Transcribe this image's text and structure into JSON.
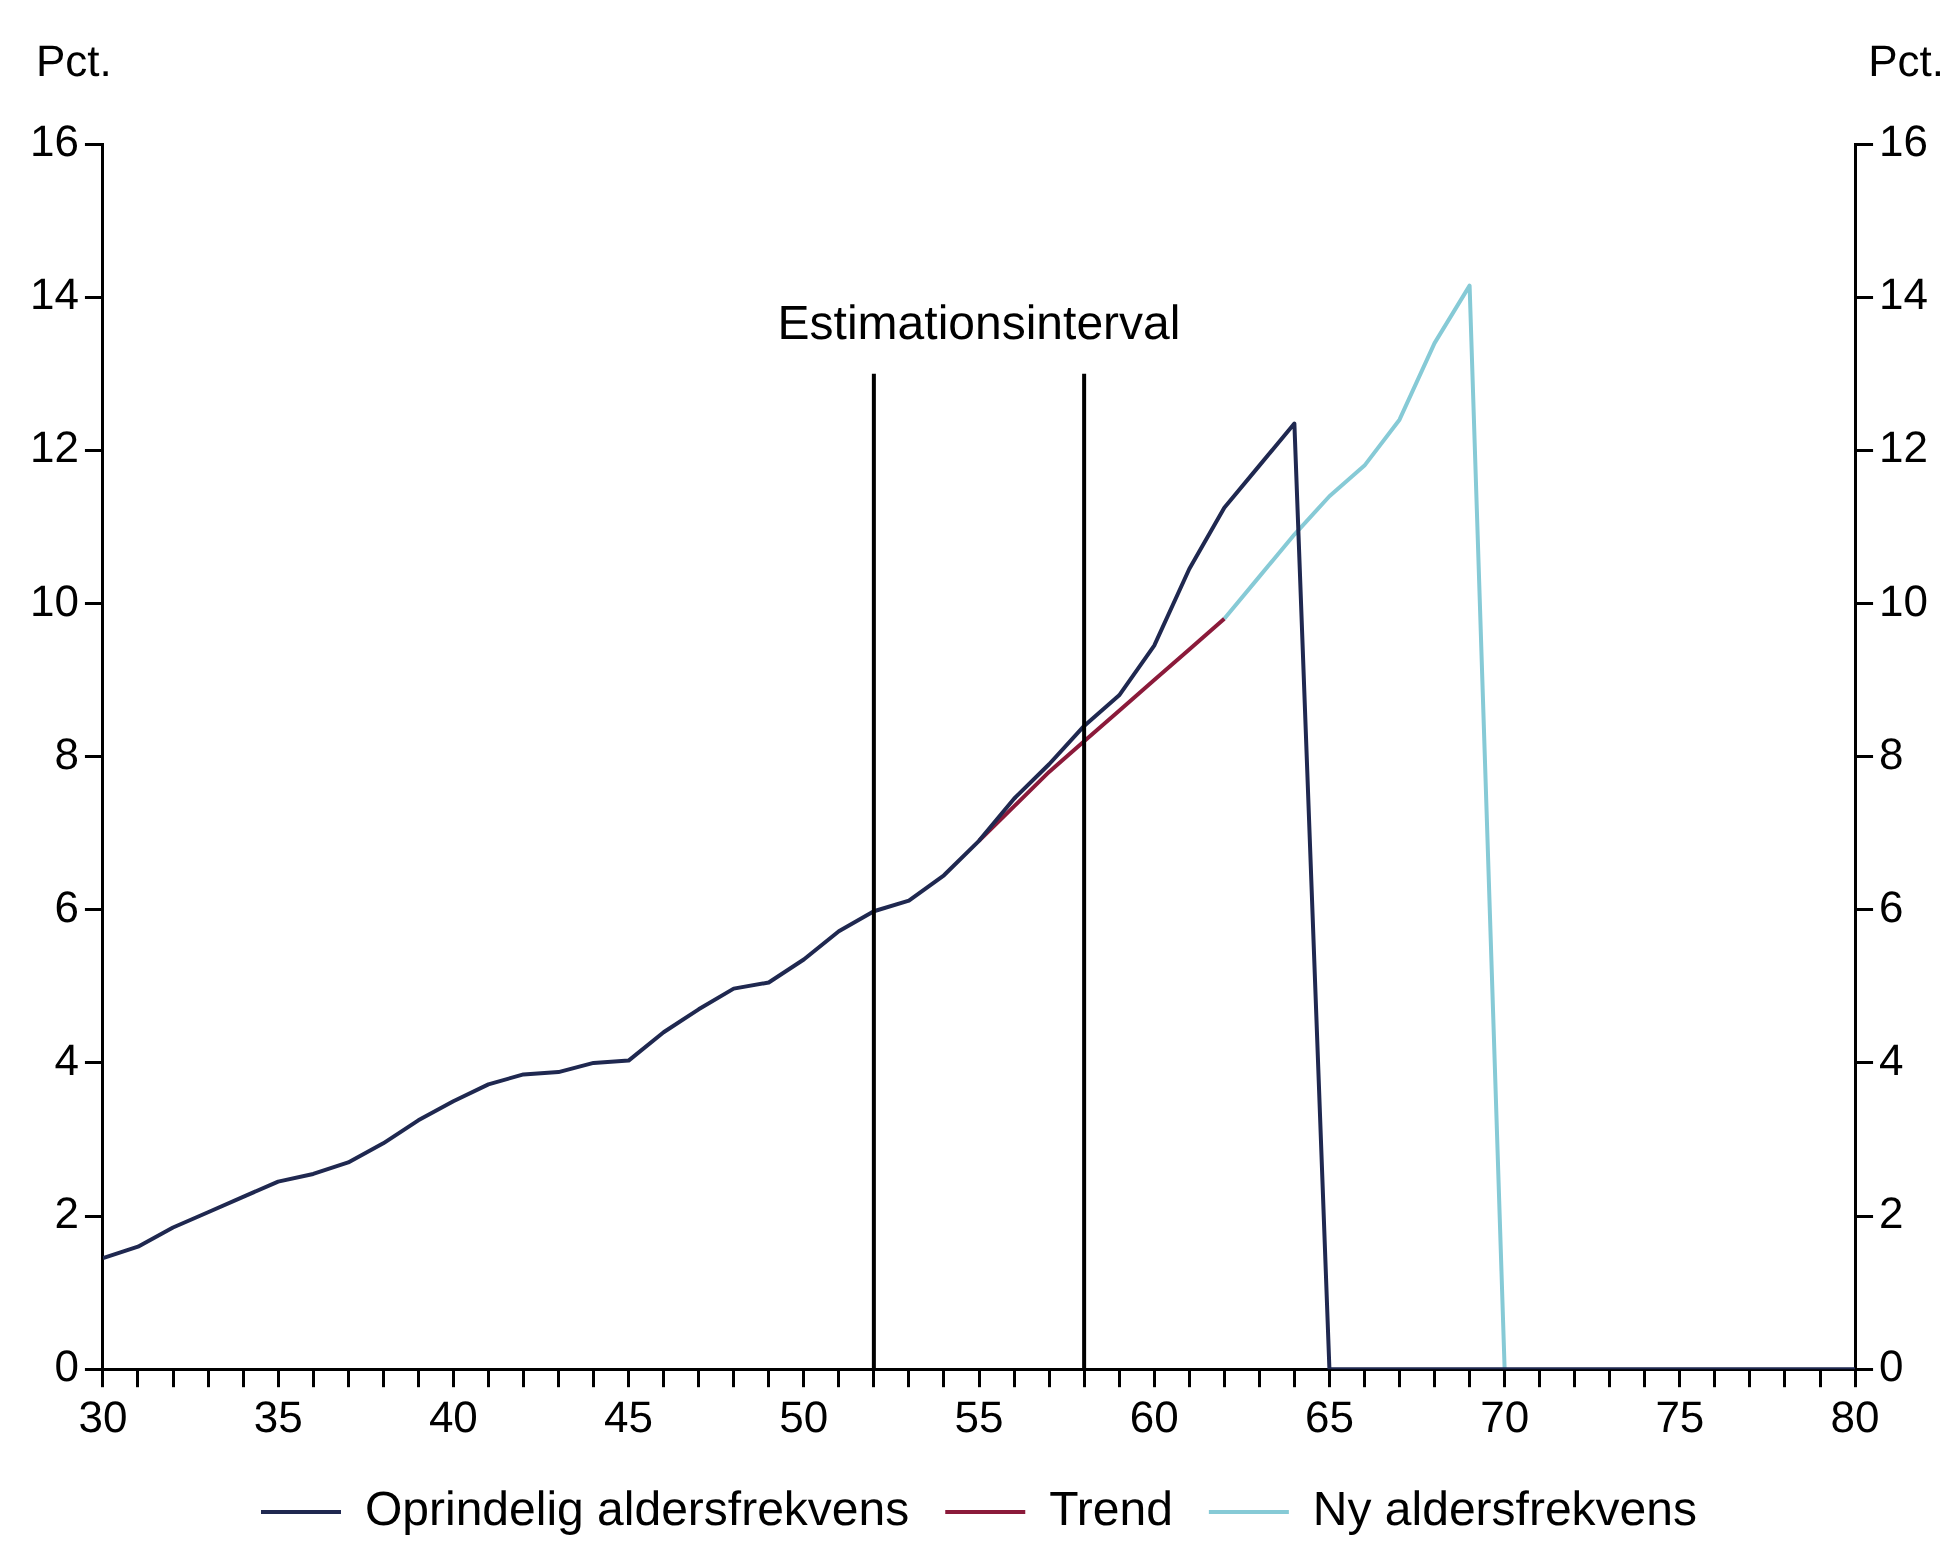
{
  "chart_data": {
    "type": "line",
    "ylabel": "Pct.",
    "y2label": "Pct.",
    "annotations": [
      "Estimationsinterval"
    ],
    "series": [
      {
        "name": "Oprindelig aldersfrekvens",
        "color": "#1f2850",
        "x": [
          30,
          31,
          32,
          33,
          34,
          35,
          36,
          37,
          38,
          39,
          40,
          41,
          42,
          43,
          44,
          45,
          46,
          47,
          48,
          49,
          50,
          51,
          52,
          53,
          54,
          55,
          56,
          57,
          58,
          59,
          60,
          61,
          62,
          63,
          64,
          65,
          66,
          67,
          68,
          69,
          70,
          71,
          72,
          73,
          74,
          75,
          76,
          77,
          78,
          79,
          80
        ],
        "values": [
          1.45,
          1.6,
          1.85,
          2.05,
          2.25,
          2.45,
          2.55,
          2.7,
          2.95,
          3.25,
          3.5,
          3.72,
          3.85,
          3.88,
          4.0,
          4.03,
          4.4,
          4.7,
          4.97,
          5.05,
          5.35,
          5.72,
          5.98,
          6.12,
          6.45,
          6.9,
          7.45,
          7.9,
          8.4,
          8.8,
          9.45,
          10.45,
          11.25,
          11.8,
          12.35,
          0,
          0,
          0,
          0,
          0,
          0,
          0,
          0,
          0,
          0,
          0,
          0,
          0,
          0,
          0,
          0
        ]
      },
      {
        "name": "Trend",
        "color": "#8b1a3a",
        "x": [
          55,
          56,
          57,
          58,
          59,
          60,
          61,
          62
        ],
        "values": [
          6.9,
          7.35,
          7.8,
          8.2,
          8.6,
          9.0,
          9.4,
          9.8
        ]
      },
      {
        "name": "Ny aldersfrekvens",
        "color": "#86cad6",
        "x": [
          62,
          63,
          64,
          65,
          66,
          67,
          68,
          69,
          70
        ],
        "values": [
          9.8,
          10.35,
          10.9,
          11.4,
          11.8,
          12.4,
          13.4,
          14.15,
          0
        ]
      }
    ],
    "ref_lines": [
      {
        "axis": "x",
        "value": 52,
        "color": "#000000"
      },
      {
        "axis": "x",
        "value": 58,
        "color": "#000000"
      }
    ],
    "xlim": [
      30,
      80
    ],
    "xticks": [
      30,
      {
        "value": 31,
        "label": null
      },
      {
        "value": 32,
        "label": null
      },
      {
        "value": 33,
        "label": null
      },
      {
        "value": 34,
        "label": null
      },
      35,
      {
        "value": 36,
        "label": null
      },
      {
        "value": 37,
        "label": null
      },
      {
        "value": 38,
        "label": null
      },
      {
        "value": 39,
        "label": null
      },
      40,
      {
        "value": 41,
        "label": null
      },
      {
        "value": 42,
        "label": null
      },
      {
        "value": 43,
        "label": null
      },
      {
        "value": 44,
        "label": null
      },
      45,
      {
        "value": 46,
        "label": null
      },
      {
        "value": 47,
        "label": null
      },
      {
        "value": 48,
        "label": null
      },
      {
        "value": 49,
        "label": null
      },
      50,
      {
        "value": 51,
        "label": null
      },
      {
        "value": 52,
        "label": null
      },
      {
        "value": 53,
        "label": null
      },
      {
        "value": 54,
        "label": null
      },
      55,
      {
        "value": 56,
        "label": null
      },
      {
        "value": 57,
        "label": null
      },
      {
        "value": 58,
        "label": null
      },
      {
        "value": 59,
        "label": null
      },
      60,
      {
        "value": 61,
        "label": null
      },
      {
        "value": 62,
        "label": null
      },
      {
        "value": 63,
        "label": null
      },
      {
        "value": 64,
        "label": null
      },
      65,
      {
        "value": 66,
        "label": null
      },
      {
        "value": 67,
        "label": null
      },
      {
        "value": 68,
        "label": null
      },
      {
        "value": 69,
        "label": null
      },
      70,
      {
        "value": 71,
        "label": null
      },
      {
        "value": 72,
        "label": null
      },
      {
        "value": 73,
        "label": null
      },
      {
        "value": 74,
        "label": null
      },
      75,
      {
        "value": 76,
        "label": null
      },
      {
        "value": 77,
        "label": null
      },
      {
        "value": 78,
        "label": null
      },
      {
        "value": 79,
        "label": null
      },
      80
    ],
    "ylim": [
      0,
      16
    ],
    "yticks": [
      0,
      2,
      4,
      6,
      8,
      10,
      12,
      14,
      16
    ],
    "y2lim": [
      0,
      16
    ],
    "y2ticks": [
      0,
      2,
      4,
      6,
      8,
      10,
      12,
      14,
      16
    ],
    "grid": false,
    "legend": "bottom",
    "marker": "none",
    "line_style": "solid"
  }
}
